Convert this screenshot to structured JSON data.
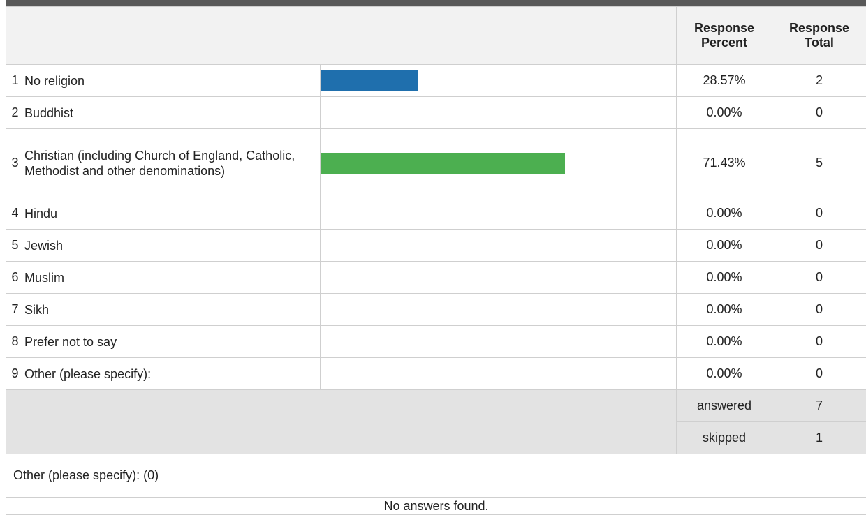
{
  "header": {
    "percent_label": "Response Percent",
    "total_label": "Response Total"
  },
  "rows": [
    {
      "index": "1",
      "label": "No religion",
      "percent": "28.57%",
      "fraction": 0.2857,
      "total": "2",
      "color": "#1f6fad"
    },
    {
      "index": "2",
      "label": "Buddhist",
      "percent": "0.00%",
      "fraction": 0,
      "total": "0",
      "color": "#1f6fad"
    },
    {
      "index": "3",
      "label": "Christian (including Church of England, Catholic, Methodist and other denominations)",
      "percent": "71.43%",
      "fraction": 0.7143,
      "total": "5",
      "color": "#4caf50"
    },
    {
      "index": "4",
      "label": "Hindu",
      "percent": "0.00%",
      "fraction": 0,
      "total": "0",
      "color": "#1f6fad"
    },
    {
      "index": "5",
      "label": "Jewish",
      "percent": "0.00%",
      "fraction": 0,
      "total": "0",
      "color": "#1f6fad"
    },
    {
      "index": "6",
      "label": "Muslim",
      "percent": "0.00%",
      "fraction": 0,
      "total": "0",
      "color": "#1f6fad"
    },
    {
      "index": "7",
      "label": "Sikh",
      "percent": "0.00%",
      "fraction": 0,
      "total": "0",
      "color": "#1f6fad"
    },
    {
      "index": "8",
      "label": "Prefer not to say",
      "percent": "0.00%",
      "fraction": 0,
      "total": "0",
      "color": "#1f6fad"
    },
    {
      "index": "9",
      "label": "Other (please specify):",
      "percent": "0.00%",
      "fraction": 0,
      "total": "0",
      "color": "#1f6fad"
    }
  ],
  "summary": {
    "answered_label": "answered",
    "answered_value": "7",
    "skipped_label": "skipped",
    "skipped_value": "1"
  },
  "other": {
    "header": "Other (please specify): (0)",
    "empty_text": "No answers found."
  }
}
